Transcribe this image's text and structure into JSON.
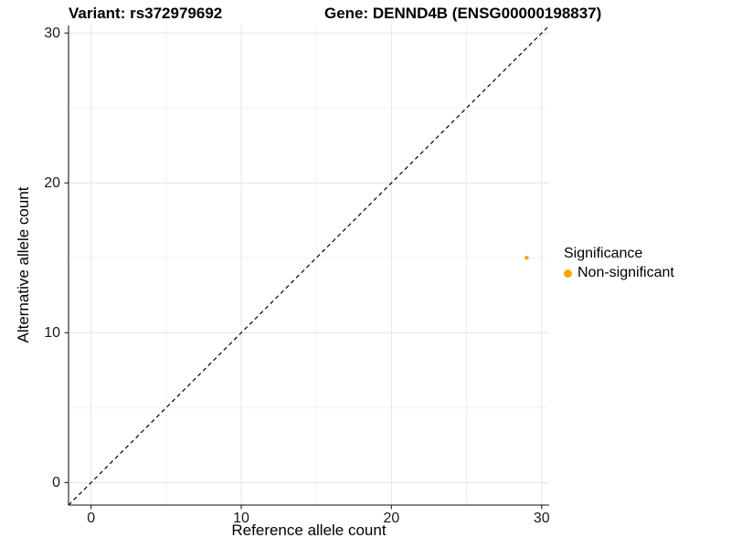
{
  "chart_data": {
    "type": "scatter",
    "titles": {
      "left": "Variant: rs372979692",
      "right": "Gene: DENND4B (ENSG00000198837)"
    },
    "xlabel": "Reference allele count",
    "ylabel": "Alternative allele count",
    "xlim": [
      -1.5,
      30.5
    ],
    "ylim": [
      -1.5,
      30.5
    ],
    "xticks": [
      0,
      10,
      20,
      30
    ],
    "yticks": [
      0,
      10,
      20,
      30
    ],
    "minor_xticks": [
      5,
      15,
      25
    ],
    "minor_yticks": [
      5,
      15,
      25
    ],
    "grid": "major and minor gridlines, light gray on white panel",
    "identity_line": {
      "equation": "y = x",
      "style": "dashed",
      "color": "#000000"
    },
    "series": [
      {
        "name": "Non-significant",
        "color": "#FFA500",
        "points": [
          {
            "x": 29,
            "y": 15
          }
        ]
      }
    ],
    "legend": {
      "position": "right",
      "title": "Significance",
      "entries": [
        {
          "label": "Non-significant",
          "color": "#FFA500"
        }
      ]
    }
  },
  "style": {
    "background": "#FFFFFF",
    "grid_major_color": "#E6E6E6",
    "grid_minor_color": "#F0F0F0",
    "axis_line_color": "#3C3C3C",
    "tick_color": "#333333",
    "text_color": "#000000",
    "point_color": "#FFA500"
  }
}
